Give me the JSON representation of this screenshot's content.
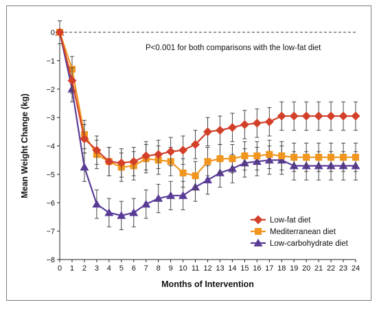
{
  "chart_data": {
    "type": "line",
    "title": "",
    "xlabel": "Months of Intervention",
    "ylabel": "Mean Weight Change (kg)",
    "xlim": [
      0,
      24
    ],
    "ylim": [
      -8,
      0
    ],
    "x_ticks": [
      0,
      1,
      2,
      3,
      4,
      5,
      6,
      7,
      8,
      9,
      10,
      11,
      12,
      13,
      14,
      15,
      16,
      17,
      18,
      19,
      20,
      21,
      22,
      23,
      24
    ],
    "y_ticks": [
      0,
      -1,
      -2,
      -3,
      -4,
      -5,
      -6,
      -7,
      -8
    ],
    "y_tick_labels": [
      "0",
      "−1",
      "−2",
      "−3",
      "−4",
      "−5",
      "−6",
      "−7",
      "−8"
    ],
    "grid": false,
    "reference_line_y": 0,
    "annotation": "P<0.001 for both comparisons with the low-fat diet",
    "legend_position": "lower-right",
    "x": [
      0,
      1,
      2,
      3,
      4,
      5,
      6,
      7,
      8,
      9,
      10,
      11,
      12,
      13,
      14,
      15,
      16,
      17,
      18,
      19,
      20,
      21,
      22,
      23,
      24
    ],
    "series": [
      {
        "name": "Low-fat diet",
        "color": "#d2402a",
        "marker": "diamond",
        "values": [
          0,
          -1.7,
          -3.75,
          -4.15,
          -4.55,
          -4.6,
          -4.55,
          -4.35,
          -4.3,
          -4.2,
          -4.15,
          -3.95,
          -3.5,
          -3.45,
          -3.35,
          -3.25,
          -3.2,
          -3.15,
          -2.95,
          -2.95,
          -2.95,
          -2.95,
          -2.95,
          -2.95,
          -2.95
        ],
        "error": [
          0.4,
          0.45,
          0.5,
          0.5,
          0.5,
          0.5,
          0.5,
          0.5,
          0.5,
          0.5,
          0.5,
          0.5,
          0.5,
          0.5,
          0.5,
          0.5,
          0.5,
          0.5,
          0.5,
          0.5,
          0.5,
          0.5,
          0.5,
          0.5,
          0.5
        ]
      },
      {
        "name": "Mediterranean diet",
        "color": "#f0961e",
        "marker": "square",
        "values": [
          0,
          -1.3,
          -3.6,
          -4.3,
          -4.55,
          -4.75,
          -4.7,
          -4.45,
          -4.5,
          -4.55,
          -4.95,
          -5.05,
          -4.55,
          -4.45,
          -4.45,
          -4.35,
          -4.35,
          -4.3,
          -4.35,
          -4.4,
          -4.4,
          -4.4,
          -4.4,
          -4.4,
          -4.4
        ],
        "error": [
          0.4,
          0.45,
          0.5,
          0.5,
          0.5,
          0.5,
          0.5,
          0.5,
          0.5,
          0.5,
          0.5,
          0.5,
          0.5,
          0.5,
          0.5,
          0.5,
          0.5,
          0.5,
          0.5,
          0.5,
          0.5,
          0.5,
          0.5,
          0.5,
          0.5
        ]
      },
      {
        "name": "Low-carbohydrate diet",
        "color": "#5a3c96",
        "marker": "triangle",
        "values": [
          0,
          -2.0,
          -4.75,
          -6.05,
          -6.35,
          -6.45,
          -6.35,
          -6.05,
          -5.85,
          -5.75,
          -5.75,
          -5.45,
          -5.2,
          -4.95,
          -4.8,
          -4.6,
          -4.55,
          -4.5,
          -4.5,
          -4.7,
          -4.7,
          -4.7,
          -4.7,
          -4.7,
          -4.7
        ],
        "error": [
          0.4,
          0.45,
          0.5,
          0.5,
          0.5,
          0.5,
          0.5,
          0.5,
          0.5,
          0.5,
          0.5,
          0.5,
          0.5,
          0.5,
          0.5,
          0.5,
          0.5,
          0.5,
          0.5,
          0.5,
          0.5,
          0.5,
          0.5,
          0.5,
          0.5
        ]
      }
    ]
  }
}
